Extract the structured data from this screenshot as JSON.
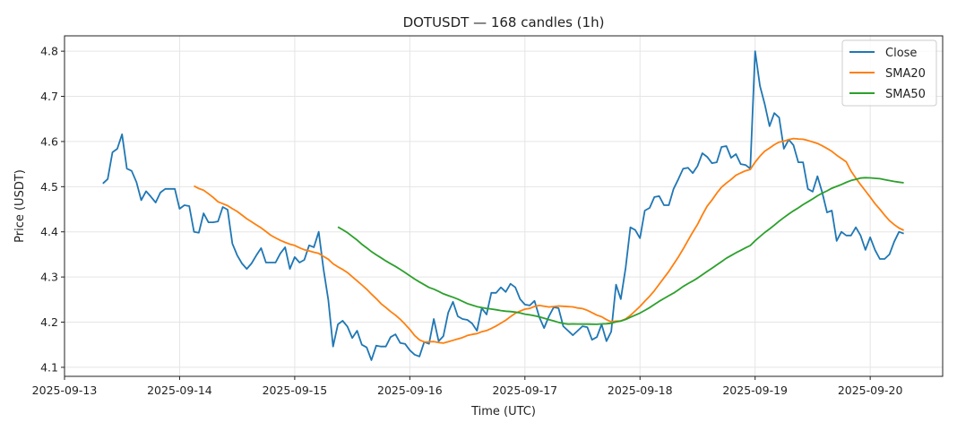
{
  "chart_data": {
    "type": "line",
    "title": "DOTUSDT — 168 candles (1h)",
    "xlabel": "Time (UTC)",
    "ylabel": "Price (USDT)",
    "start_time": "2025-09-13T08:00",
    "interval_hours": 1,
    "xlim_days": [
      "2025-09-13",
      "2025-09-20"
    ],
    "x_ticks": [
      "2025-09-13",
      "2025-09-14",
      "2025-09-15",
      "2025-09-16",
      "2025-09-17",
      "2025-09-18",
      "2025-09-19",
      "2025-09-20"
    ],
    "ylim": [
      4.08,
      4.834
    ],
    "y_ticks": [
      "4.1",
      "4.2",
      "4.3",
      "4.4",
      "4.5",
      "4.6",
      "4.7",
      "4.8"
    ],
    "grid": true,
    "legend_position": "top-right",
    "series": [
      {
        "name": "Close",
        "color": "#1f77b4",
        "values": [
          4.507,
          4.517,
          4.576,
          4.584,
          4.616,
          4.54,
          4.535,
          4.51,
          4.47,
          4.49,
          4.478,
          4.465,
          4.487,
          4.495,
          4.495,
          4.495,
          4.451,
          4.459,
          4.457,
          4.4,
          4.398,
          4.441,
          4.421,
          4.421,
          4.423,
          4.455,
          4.449,
          4.374,
          4.348,
          4.33,
          4.318,
          4.33,
          4.348,
          4.364,
          4.332,
          4.332,
          4.332,
          4.352,
          4.366,
          4.318,
          4.344,
          4.332,
          4.338,
          4.37,
          4.366,
          4.4,
          4.318,
          4.249,
          4.146,
          4.195,
          4.203,
          4.19,
          4.165,
          4.181,
          4.15,
          4.144,
          4.116,
          4.148,
          4.146,
          4.146,
          4.167,
          4.173,
          4.154,
          4.152,
          4.138,
          4.128,
          4.124,
          4.156,
          4.152,
          4.207,
          4.158,
          4.169,
          4.221,
          4.245,
          4.213,
          4.207,
          4.205,
          4.197,
          4.181,
          4.231,
          4.217,
          4.265,
          4.265,
          4.277,
          4.267,
          4.285,
          4.277,
          4.251,
          4.239,
          4.237,
          4.247,
          4.211,
          4.187,
          4.213,
          4.233,
          4.231,
          4.191,
          4.181,
          4.171,
          4.181,
          4.191,
          4.189,
          4.161,
          4.167,
          4.195,
          4.158,
          4.179,
          4.283,
          4.251,
          4.32,
          4.41,
          4.404,
          4.386,
          4.447,
          4.453,
          4.477,
          4.479,
          4.459,
          4.459,
          4.495,
          4.517,
          4.54,
          4.542,
          4.53,
          4.546,
          4.574,
          4.566,
          4.552,
          4.554,
          4.588,
          4.59,
          4.564,
          4.572,
          4.55,
          4.548,
          4.54,
          4.8,
          4.723,
          4.683,
          4.634,
          4.663,
          4.653,
          4.584,
          4.604,
          4.592,
          4.554,
          4.554,
          4.495,
          4.489,
          4.523,
          4.487,
          4.443,
          4.447,
          4.38,
          4.4,
          4.392,
          4.392,
          4.41,
          4.392,
          4.36,
          4.388,
          4.36,
          4.34,
          4.34,
          4.35,
          4.378,
          4.4,
          4.396
        ]
      },
      {
        "name": "SMA20",
        "color": "#ff7f0e",
        "window": 20
      },
      {
        "name": "SMA50",
        "color": "#2ca02c",
        "window": 50
      }
    ]
  }
}
